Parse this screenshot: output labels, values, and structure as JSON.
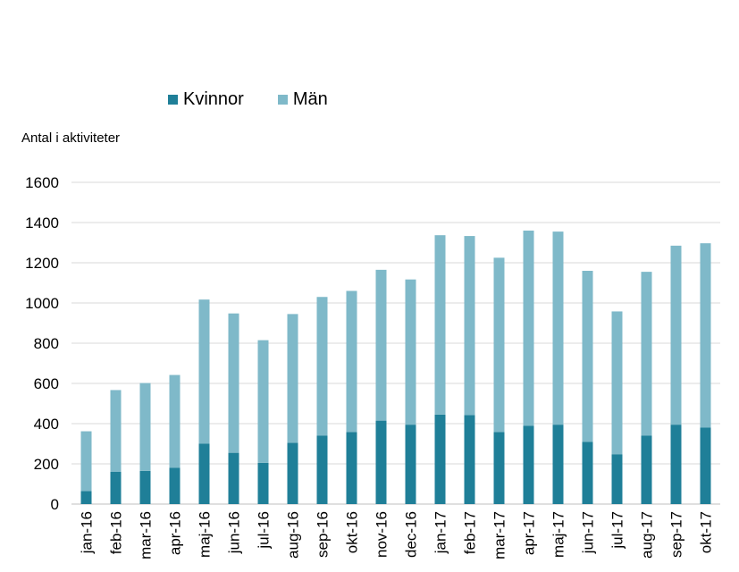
{
  "chart_data": {
    "type": "bar",
    "stacked": true,
    "categories": [
      "jan-16",
      "feb-16",
      "mar-16",
      "apr-16",
      "maj-16",
      "jun-16",
      "jul-16",
      "aug-16",
      "sep-16",
      "okt-16",
      "nov-16",
      "dec-16",
      "jan-17",
      "feb-17",
      "mar-17",
      "apr-17",
      "maj-17",
      "jun-17",
      "jul-17",
      "aug-17",
      "sep-17",
      "okt-17"
    ],
    "series": [
      {
        "name": "Kvinnor",
        "color": "#1f7f98",
        "values": [
          65,
          160,
          165,
          180,
          300,
          255,
          205,
          305,
          340,
          358,
          415,
          395,
          445,
          443,
          358,
          390,
          395,
          310,
          248,
          340,
          395,
          380
        ]
      },
      {
        "name": "Män",
        "color": "#7fb9c9",
        "values": [
          297,
          407,
          437,
          462,
          717,
          693,
          610,
          640,
          690,
          702,
          750,
          722,
          892,
          890,
          867,
          970,
          960,
          850,
          710,
          815,
          890,
          917
        ]
      }
    ],
    "ylabel": "Antal  i aktiviteter",
    "ylim": [
      0,
      1600
    ],
    "yticks": [
      0,
      200,
      400,
      600,
      800,
      1000,
      1200,
      1400,
      1600
    ],
    "grid": true,
    "legend_position": "top"
  }
}
